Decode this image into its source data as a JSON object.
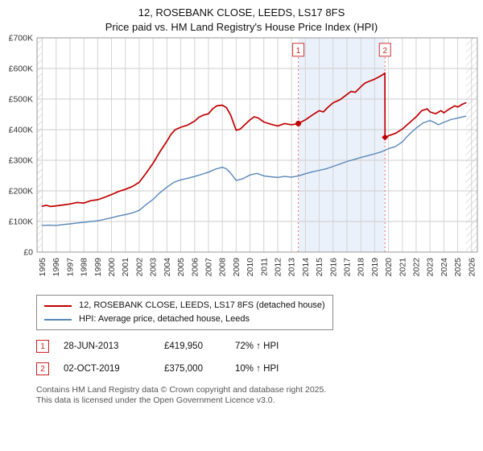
{
  "header": {
    "title": "12, ROSEBANK CLOSE, LEEDS, LS17 8FS",
    "subtitle": "Price paid vs. HM Land Registry's House Price Index (HPI)"
  },
  "chart_data": {
    "type": "line",
    "title": "12, ROSEBANK CLOSE, LEEDS, LS17 8FS — Price paid vs. HPI",
    "xlabel": "",
    "ylabel": "",
    "legend_position": "bottom",
    "grid": true,
    "x_range": [
      1994.62,
      2026.42
    ],
    "y_range": [
      0,
      700000
    ],
    "x_ticks": [
      1995,
      1996,
      1997,
      1998,
      1999,
      2000,
      2001,
      2002,
      2003,
      2004,
      2005,
      2006,
      2007,
      2008,
      2009,
      2010,
      2011,
      2012,
      2013,
      2014,
      2015,
      2016,
      2017,
      2018,
      2019,
      2020,
      2021,
      2022,
      2023,
      2024,
      2025,
      2026
    ],
    "y_tick_labels": [
      "£0",
      "£100K",
      "£200K",
      "£300K",
      "£400K",
      "£500K",
      "£600K",
      "£700K"
    ],
    "shaded_band": {
      "from": 2013.49,
      "to": 2019.75,
      "color": "#e6eef9"
    },
    "hatched_regions": [
      [
        1994.62,
        1995.0
      ],
      [
        2025.58,
        2026.42
      ]
    ],
    "markers": [
      {
        "label": "1",
        "x": 2013.49,
        "y": 419950
      },
      {
        "label": "2",
        "x": 2019.75,
        "y": 375000
      }
    ],
    "series": [
      {
        "name": "12, ROSEBANK CLOSE, LEEDS, LS17 8FS (detached house)",
        "color": "#c00000",
        "width": 1.7,
        "points": [
          [
            1995,
            150000
          ],
          [
            1995.3,
            153000
          ],
          [
            1995.6,
            149000
          ],
          [
            1996,
            151000
          ],
          [
            1996.5,
            154000
          ],
          [
            1997,
            157000
          ],
          [
            1997.5,
            162000
          ],
          [
            1998,
            160000
          ],
          [
            1998.5,
            168000
          ],
          [
            1999,
            171000
          ],
          [
            1999.5,
            179000
          ],
          [
            2000,
            188000
          ],
          [
            2000.5,
            198000
          ],
          [
            2001,
            205000
          ],
          [
            2001.5,
            214000
          ],
          [
            2002,
            228000
          ],
          [
            2002.5,
            258000
          ],
          [
            2003,
            290000
          ],
          [
            2003.5,
            328000
          ],
          [
            2004,
            362000
          ],
          [
            2004.3,
            385000
          ],
          [
            2004.6,
            400000
          ],
          [
            2005,
            408000
          ],
          [
            2005.5,
            415000
          ],
          [
            2006,
            428000
          ],
          [
            2006.3,
            440000
          ],
          [
            2006.6,
            447000
          ],
          [
            2007,
            452000
          ],
          [
            2007.3,
            468000
          ],
          [
            2007.6,
            478000
          ],
          [
            2008,
            480000
          ],
          [
            2008.3,
            472000
          ],
          [
            2008.6,
            448000
          ],
          [
            2009,
            398000
          ],
          [
            2009.3,
            402000
          ],
          [
            2009.6,
            415000
          ],
          [
            2010,
            432000
          ],
          [
            2010.3,
            442000
          ],
          [
            2010.6,
            438000
          ],
          [
            2011,
            425000
          ],
          [
            2011.5,
            418000
          ],
          [
            2012,
            412000
          ],
          [
            2012.5,
            420000
          ],
          [
            2013,
            416000
          ],
          [
            2013.49,
            419950
          ],
          [
            2014,
            432000
          ],
          [
            2014.5,
            448000
          ],
          [
            2015,
            462000
          ],
          [
            2015.3,
            458000
          ],
          [
            2015.6,
            472000
          ],
          [
            2016,
            488000
          ],
          [
            2016.5,
            498000
          ],
          [
            2017,
            515000
          ],
          [
            2017.3,
            525000
          ],
          [
            2017.6,
            522000
          ],
          [
            2018,
            540000
          ],
          [
            2018.3,
            552000
          ],
          [
            2018.6,
            558000
          ],
          [
            2019,
            565000
          ],
          [
            2019.3,
            572000
          ],
          [
            2019.6,
            580000
          ],
          [
            2019.74,
            585000
          ],
          [
            2019.75,
            375000
          ],
          [
            2020,
            380000
          ],
          [
            2020.5,
            388000
          ],
          [
            2021,
            402000
          ],
          [
            2021.5,
            422000
          ],
          [
            2022,
            442000
          ],
          [
            2022.4,
            462000
          ],
          [
            2022.8,
            468000
          ],
          [
            2023,
            458000
          ],
          [
            2023.4,
            452000
          ],
          [
            2023.8,
            462000
          ],
          [
            2024,
            455000
          ],
          [
            2024.4,
            468000
          ],
          [
            2024.8,
            478000
          ],
          [
            2025,
            474000
          ],
          [
            2025.3,
            482000
          ],
          [
            2025.58,
            488000
          ]
        ]
      },
      {
        "name": "HPI: Average price, detached house, Leeds",
        "color": "#5a87b8",
        "width": 1.4,
        "points": [
          [
            1995,
            87000
          ],
          [
            1995.5,
            88000
          ],
          [
            1996,
            87000
          ],
          [
            1996.5,
            90000
          ],
          [
            1997,
            92000
          ],
          [
            1997.5,
            95000
          ],
          [
            1998,
            97000
          ],
          [
            1998.5,
            100000
          ],
          [
            1999,
            102000
          ],
          [
            1999.5,
            107000
          ],
          [
            2000,
            112000
          ],
          [
            2000.5,
            118000
          ],
          [
            2001,
            122000
          ],
          [
            2001.5,
            128000
          ],
          [
            2002,
            136000
          ],
          [
            2002.5,
            155000
          ],
          [
            2003,
            172000
          ],
          [
            2003.5,
            194000
          ],
          [
            2004,
            212000
          ],
          [
            2004.5,
            228000
          ],
          [
            2005,
            236000
          ],
          [
            2005.5,
            241000
          ],
          [
            2006,
            247000
          ],
          [
            2006.5,
            254000
          ],
          [
            2007,
            261000
          ],
          [
            2007.5,
            271000
          ],
          [
            2008,
            277000
          ],
          [
            2008.3,
            272000
          ],
          [
            2008.6,
            258000
          ],
          [
            2009,
            234000
          ],
          [
            2009.5,
            240000
          ],
          [
            2010,
            252000
          ],
          [
            2010.5,
            257000
          ],
          [
            2011,
            249000
          ],
          [
            2011.5,
            246000
          ],
          [
            2012,
            244000
          ],
          [
            2012.5,
            247000
          ],
          [
            2013,
            245000
          ],
          [
            2013.5,
            249000
          ],
          [
            2014,
            256000
          ],
          [
            2014.5,
            262000
          ],
          [
            2015,
            267000
          ],
          [
            2015.5,
            272000
          ],
          [
            2016,
            280000
          ],
          [
            2016.5,
            288000
          ],
          [
            2017,
            296000
          ],
          [
            2017.5,
            302000
          ],
          [
            2018,
            309000
          ],
          [
            2018.5,
            315000
          ],
          [
            2019,
            321000
          ],
          [
            2019.5,
            328000
          ],
          [
            2020,
            338000
          ],
          [
            2020.5,
            345000
          ],
          [
            2021,
            360000
          ],
          [
            2021.5,
            385000
          ],
          [
            2022,
            405000
          ],
          [
            2022.5,
            422000
          ],
          [
            2023,
            430000
          ],
          [
            2023.3,
            424000
          ],
          [
            2023.6,
            416000
          ],
          [
            2024,
            424000
          ],
          [
            2024.5,
            433000
          ],
          [
            2025,
            438000
          ],
          [
            2025.58,
            444000
          ]
        ]
      }
    ]
  },
  "transactions": [
    {
      "num": "1",
      "date": "28-JUN-2013",
      "price": "£419,950",
      "hpi": "72% ↑ HPI"
    },
    {
      "num": "2",
      "date": "02-OCT-2019",
      "price": "£375,000",
      "hpi": "10% ↑ HPI"
    }
  ],
  "footer": {
    "line1": "Contains HM Land Registry data © Crown copyright and database right 2025.",
    "line2": "This data is licensed under the Open Government Licence v3.0."
  }
}
